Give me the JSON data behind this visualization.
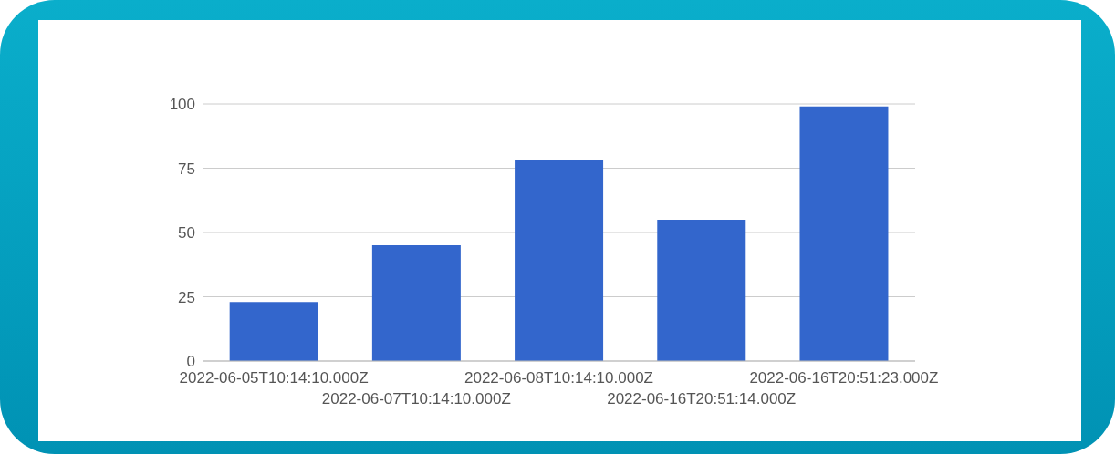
{
  "chart_data": {
    "type": "bar",
    "categories": [
      "2022-06-05T10:14:10.000Z",
      "2022-06-07T10:14:10.000Z",
      "2022-06-08T10:14:10.000Z",
      "2022-06-16T20:51:14.000Z",
      "2022-06-16T20:51:23.000Z"
    ],
    "values": [
      23,
      45,
      78,
      55,
      99
    ],
    "color": "#3366cc",
    "ylim": [
      0,
      100
    ],
    "yticks": [
      0,
      25,
      50,
      75,
      100
    ],
    "grid": "y",
    "legend": false
  }
}
